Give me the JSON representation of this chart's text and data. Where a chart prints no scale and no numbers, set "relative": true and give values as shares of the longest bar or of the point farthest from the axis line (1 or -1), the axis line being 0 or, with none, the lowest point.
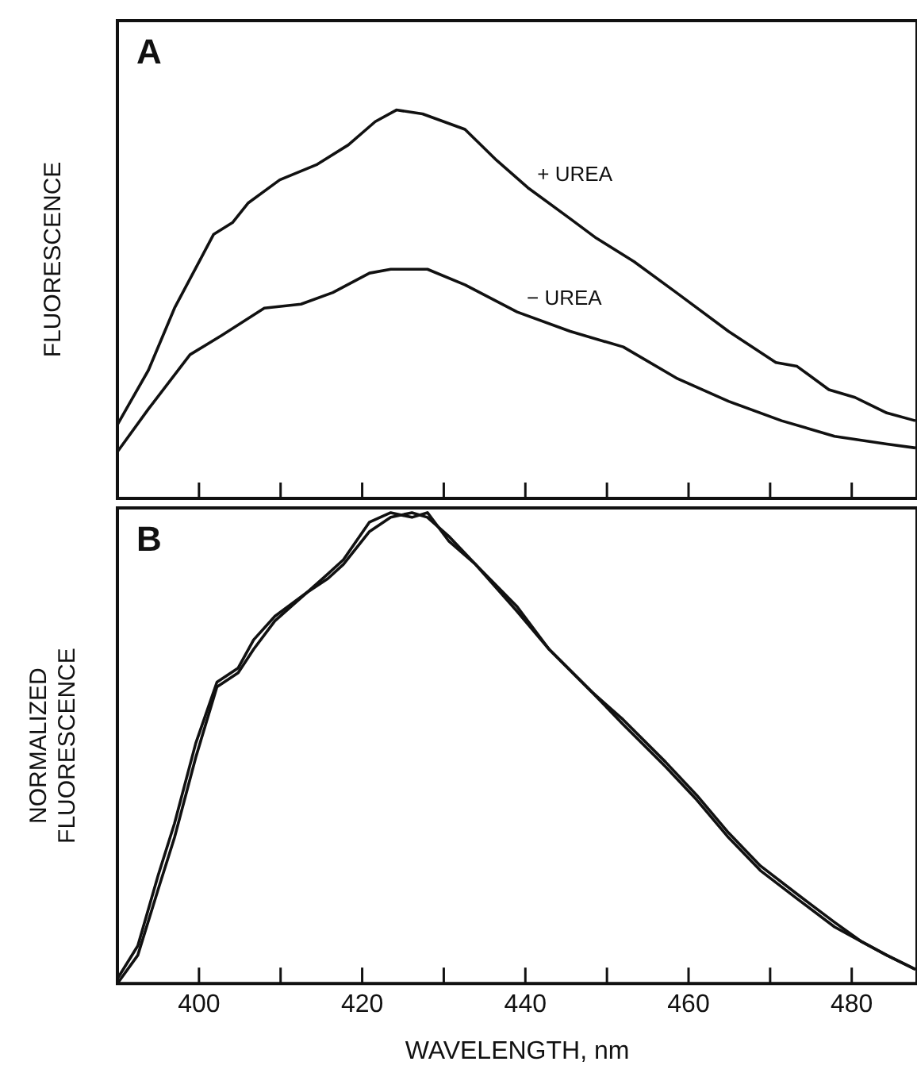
{
  "chart_data": [
    {
      "type": "line",
      "title": "A",
      "ylabel": "FLUORESCENCE",
      "relative": true,
      "legend": false,
      "grid": false,
      "tick_labels": false,
      "xlim": [
        390,
        488
      ],
      "xticks": [
        {
          "value": 400,
          "label": null
        },
        {
          "value": 410,
          "label": null
        },
        {
          "value": 420,
          "label": null
        },
        {
          "value": 430,
          "label": null
        },
        {
          "value": 440,
          "label": null
        },
        {
          "value": 450,
          "label": null
        },
        {
          "value": 460,
          "label": null
        },
        {
          "value": 470,
          "label": null
        },
        {
          "value": 480,
          "label": null
        }
      ],
      "series": [
        {
          "name": "+ UREA",
          "color": "#111111",
          "x": [
            390,
            393.8,
            397,
            401.8,
            404.1,
            406,
            409.9,
            414.5,
            418.3,
            421.6,
            424.2,
            427.4,
            432.6,
            436.5,
            440.3,
            445.5,
            448.7,
            453.3,
            458.5,
            464.9,
            470.7,
            473.3,
            477.2,
            480.4,
            484.3,
            487.8
          ],
          "values": [
            0.19,
            0.33,
            0.49,
            0.68,
            0.71,
            0.76,
            0.82,
            0.86,
            0.91,
            0.97,
            1.0,
            0.99,
            0.95,
            0.87,
            0.8,
            0.72,
            0.67,
            0.61,
            0.53,
            0.43,
            0.35,
            0.34,
            0.28,
            0.26,
            0.22,
            0.2
          ]
        },
        {
          "name": "− UREA",
          "color": "#111111",
          "x": [
            390,
            393.8,
            398.9,
            402.8,
            408,
            412.5,
            416.4,
            420.9,
            423.5,
            428,
            432.6,
            439,
            445.5,
            452,
            458.5,
            464.9,
            471.4,
            477.9,
            484.3,
            487.8
          ],
          "values": [
            0.12,
            0.23,
            0.37,
            0.42,
            0.49,
            0.5,
            0.53,
            0.58,
            0.59,
            0.59,
            0.55,
            0.48,
            0.43,
            0.39,
            0.31,
            0.25,
            0.2,
            0.16,
            0.14,
            0.13
          ]
        }
      ]
    },
    {
      "type": "line",
      "title": "B",
      "ylabel": "NORMALIZED FLUORESCENCE",
      "xlabel": "WAVELENGTH, nm",
      "relative": true,
      "legend": false,
      "grid": false,
      "tick_labels": "x",
      "xlim": [
        390,
        488
      ],
      "xticks": [
        400,
        {
          "value": 410,
          "label": null
        },
        420,
        {
          "value": 430,
          "label": null
        },
        440,
        {
          "value": 450,
          "label": null
        },
        460,
        {
          "value": 470,
          "label": null
        },
        480
      ],
      "x": [
        390,
        392.5,
        395,
        397,
        399.6,
        402.2,
        404.8,
        406.7,
        409.3,
        413.2,
        415.8,
        417.7,
        420.9,
        423.5,
        426.1,
        428,
        430.6,
        433.9,
        439,
        442.9,
        448.1,
        452,
        457.2,
        461,
        464.9,
        468.8,
        473.3,
        477.9,
        481.1,
        484.3,
        487.8
      ],
      "series": [
        {
          "color": "#111111",
          "values": [
            0.01,
            0.08,
            0.23,
            0.34,
            0.51,
            0.64,
            0.67,
            0.73,
            0.78,
            0.83,
            0.87,
            0.9,
            0.98,
            1.0,
            0.99,
            1.0,
            0.94,
            0.89,
            0.79,
            0.71,
            0.62,
            0.56,
            0.47,
            0.4,
            0.32,
            0.25,
            0.19,
            0.13,
            0.09,
            0.06,
            0.03
          ]
        },
        {
          "color": "#111111",
          "values": [
            0.0,
            0.06,
            0.2,
            0.31,
            0.48,
            0.63,
            0.66,
            0.71,
            0.77,
            0.83,
            0.86,
            0.89,
            0.96,
            0.99,
            1.0,
            0.99,
            0.95,
            0.89,
            0.8,
            0.71,
            0.62,
            0.55,
            0.46,
            0.39,
            0.31,
            0.24,
            0.18,
            0.12,
            0.09,
            0.06,
            0.03
          ]
        }
      ]
    }
  ]
}
